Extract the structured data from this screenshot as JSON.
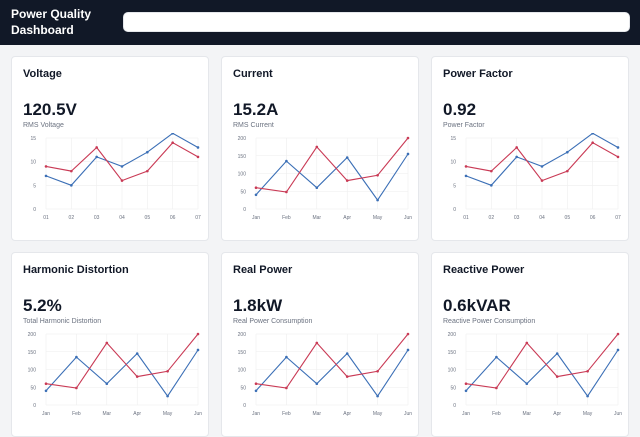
{
  "header": {
    "title": "Power Quality Dashboard",
    "search": {
      "placeholder": ""
    }
  },
  "colors": {
    "blue": "#3b6fb6",
    "red": "#c93a55",
    "header_bg": "#111827"
  },
  "cards": [
    {
      "title": "Voltage",
      "value": "120.5V",
      "subtitle": "RMS Voltage"
    },
    {
      "title": "Current",
      "value": "15.2A",
      "subtitle": "RMS Current"
    },
    {
      "title": "Power Factor",
      "value": "0.92",
      "subtitle": "Power Factor"
    },
    {
      "title": "Harmonic Distortion",
      "value": "5.2%",
      "subtitle": "Total Harmonic Distortion"
    },
    {
      "title": "Real Power",
      "value": "1.8kW",
      "subtitle": "Real Power Consumption"
    },
    {
      "title": "Reactive Power",
      "value": "0.6kVAR",
      "subtitle": "Reactive Power Consumption"
    }
  ],
  "chart_data": [
    {
      "type": "line",
      "title": "Voltage",
      "categories": [
        "01",
        "02",
        "03",
        "04",
        "05",
        "06",
        "07"
      ],
      "yticks": [
        0,
        5,
        10,
        15
      ],
      "ylim": [
        0,
        15
      ],
      "series": [
        {
          "name": "series-blue",
          "color": "#3b6fb6",
          "values": [
            7,
            5,
            11,
            9,
            12,
            16,
            13
          ]
        },
        {
          "name": "series-red",
          "color": "#c93a55",
          "values": [
            9,
            8,
            13,
            6,
            8,
            14,
            11
          ]
        }
      ]
    },
    {
      "type": "line",
      "title": "Current",
      "categories": [
        "Jan",
        "Feb",
        "Mar",
        "Apr",
        "May",
        "Jun"
      ],
      "yticks": [
        0,
        50,
        100,
        150,
        200
      ],
      "ylim": [
        0,
        200
      ],
      "series": [
        {
          "name": "series-blue",
          "color": "#3b6fb6",
          "values": [
            40,
            135,
            60,
            145,
            25,
            155
          ]
        },
        {
          "name": "series-red",
          "color": "#c93a55",
          "values": [
            60,
            48,
            175,
            80,
            95,
            200
          ]
        }
      ]
    },
    {
      "type": "line",
      "title": "Power Factor",
      "categories": [
        "01",
        "02",
        "03",
        "04",
        "05",
        "06",
        "07"
      ],
      "yticks": [
        0,
        5,
        10,
        15
      ],
      "ylim": [
        0,
        15
      ],
      "series": [
        {
          "name": "series-blue",
          "color": "#3b6fb6",
          "values": [
            7,
            5,
            11,
            9,
            12,
            16,
            13
          ]
        },
        {
          "name": "series-red",
          "color": "#c93a55",
          "values": [
            9,
            8,
            13,
            6,
            8,
            14,
            11
          ]
        }
      ]
    },
    {
      "type": "line",
      "title": "Harmonic Distortion",
      "categories": [
        "Jan",
        "Feb",
        "Mar",
        "Apr",
        "May",
        "Jun"
      ],
      "yticks": [
        0,
        50,
        100,
        150,
        200
      ],
      "ylim": [
        0,
        200
      ],
      "series": [
        {
          "name": "series-blue",
          "color": "#3b6fb6",
          "values": [
            40,
            135,
            60,
            145,
            25,
            155
          ]
        },
        {
          "name": "series-red",
          "color": "#c93a55",
          "values": [
            60,
            48,
            175,
            80,
            95,
            200
          ]
        }
      ]
    },
    {
      "type": "line",
      "title": "Real Power",
      "categories": [
        "Jan",
        "Feb",
        "Mar",
        "Apr",
        "May",
        "Jun"
      ],
      "yticks": [
        0,
        50,
        100,
        150,
        200
      ],
      "ylim": [
        0,
        200
      ],
      "series": [
        {
          "name": "series-blue",
          "color": "#3b6fb6",
          "values": [
            40,
            135,
            60,
            145,
            25,
            155
          ]
        },
        {
          "name": "series-red",
          "color": "#c93a55",
          "values": [
            60,
            48,
            175,
            80,
            95,
            200
          ]
        }
      ]
    },
    {
      "type": "line",
      "title": "Reactive Power",
      "categories": [
        "Jan",
        "Feb",
        "Mar",
        "Apr",
        "May",
        "Jun"
      ],
      "yticks": [
        0,
        50,
        100,
        150,
        200
      ],
      "ylim": [
        0,
        200
      ],
      "series": [
        {
          "name": "series-blue",
          "color": "#3b6fb6",
          "values": [
            40,
            135,
            60,
            145,
            25,
            155
          ]
        },
        {
          "name": "series-red",
          "color": "#c93a55",
          "values": [
            60,
            48,
            175,
            80,
            95,
            200
          ]
        }
      ]
    }
  ]
}
